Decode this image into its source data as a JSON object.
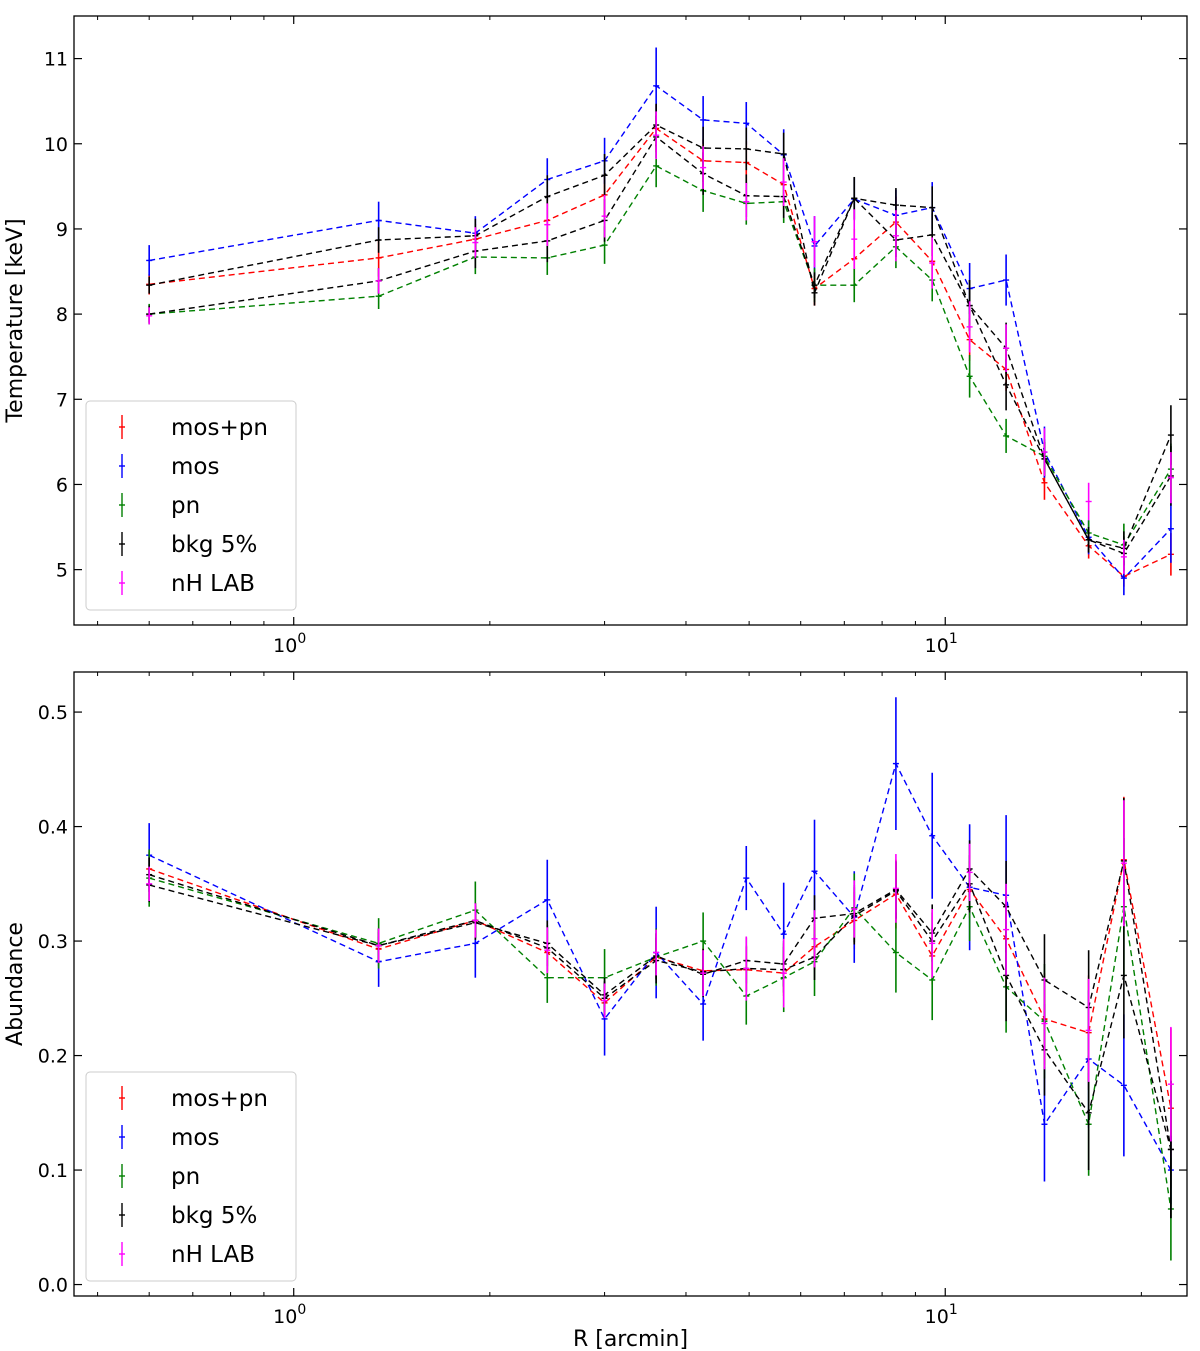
{
  "chart_data": [
    {
      "type": "line",
      "name": "temperature",
      "xscale": "log",
      "xlim": [
        0.46,
        23.5
      ],
      "ylim": [
        4.35,
        11.5
      ],
      "xlabel": "",
      "ylabel": "Temperature [keV]",
      "xticks": [
        {
          "value": 1,
          "label": "10",
          "sup": "0"
        },
        {
          "value": 10,
          "label": "10",
          "sup": "1"
        }
      ],
      "yticks": [
        5,
        6,
        7,
        8,
        9,
        10,
        11
      ],
      "legend": "bottom-left",
      "x": [
        0.6,
        1.35,
        1.9,
        2.45,
        3.0,
        3.6,
        4.25,
        4.95,
        5.65,
        6.3,
        7.25,
        8.4,
        9.55,
        10.9,
        12.4,
        14.2,
        16.6,
        18.8,
        22.2
      ],
      "series": [
        {
          "name": "mos+pn",
          "color": "#ff0000",
          "values": [
            8.35,
            8.66,
            8.88,
            9.1,
            9.4,
            10.18,
            9.8,
            9.78,
            9.52,
            8.3,
            8.65,
            9.08,
            8.62,
            7.7,
            7.35,
            6.02,
            5.28,
            4.92,
            5.18
          ],
          "errors": [
            0.12,
            0.22,
            0.18,
            0.3,
            0.25,
            0.28,
            0.25,
            0.25,
            0.3,
            0.2,
            0.35,
            0.3,
            0.3,
            0.25,
            0.25,
            0.2,
            0.15,
            0.12,
            0.25
          ]
        },
        {
          "name": "mos",
          "color": "#0000ff",
          "values": [
            8.63,
            9.1,
            8.95,
            9.58,
            9.8,
            10.68,
            10.28,
            10.24,
            9.87,
            8.8,
            9.35,
            9.16,
            9.25,
            8.3,
            8.4,
            6.38,
            5.38,
            4.9,
            5.48
          ],
          "errors": [
            0.18,
            0.22,
            0.2,
            0.25,
            0.27,
            0.45,
            0.28,
            0.25,
            0.3,
            0.35,
            0.25,
            0.3,
            0.3,
            0.3,
            0.3,
            0.3,
            0.2,
            0.2,
            0.4
          ]
        },
        {
          "name": "pn",
          "color": "#008000",
          "values": [
            8.0,
            8.21,
            8.67,
            8.66,
            8.81,
            9.74,
            9.45,
            9.3,
            9.32,
            8.34,
            8.34,
            8.79,
            8.4,
            7.27,
            6.57,
            6.33,
            5.43,
            5.29,
            6.18
          ],
          "errors": [
            0.12,
            0.15,
            0.2,
            0.2,
            0.22,
            0.25,
            0.25,
            0.25,
            0.25,
            0.2,
            0.2,
            0.25,
            0.25,
            0.25,
            0.2,
            0.2,
            0.15,
            0.25,
            0.3
          ]
        },
        {
          "name": "bkg 5%",
          "color": "#000000",
          "values": [
            8.34,
            8.87,
            8.92,
            9.38,
            9.63,
            10.22,
            9.95,
            9.94,
            9.88,
            8.25,
            9.36,
            9.28,
            9.25,
            8.1,
            7.6,
            6.3,
            5.35,
            5.25,
            6.58
          ],
          "errors": [
            0.1,
            0.15,
            0.2,
            0.25,
            0.25,
            0.25,
            0.25,
            0.25,
            0.25,
            0.15,
            0.25,
            0.2,
            0.25,
            0.3,
            0.3,
            0.2,
            0.15,
            0.2,
            0.35
          ]
        },
        {
          "name": "black-lower",
          "color": "#000000",
          "legend": false,
          "values": [
            8.0,
            8.39,
            8.74,
            8.86,
            9.1,
            10.08,
            9.65,
            9.39,
            9.38,
            8.34,
            9.36,
            8.87,
            8.93,
            8.1,
            7.17,
            6.3,
            5.35,
            5.19,
            6.1
          ],
          "errors": [
            0.1,
            0.15,
            0.2,
            0.25,
            0.25,
            0.25,
            0.25,
            0.25,
            0.25,
            0.15,
            0.25,
            0.2,
            0.25,
            0.3,
            0.3,
            0.2,
            0.15,
            0.2,
            0.35
          ]
        },
        {
          "name": "nH LAB",
          "color": "#ff00ff",
          "line": false,
          "values": [
            7.98,
            8.39,
            8.84,
            9.05,
            9.15,
            10.1,
            9.72,
            9.32,
            9.55,
            8.85,
            8.88,
            8.92,
            8.6,
            7.85,
            7.6,
            6.38,
            5.8,
            5.15,
            6.08
          ],
          "errors": [
            0.1,
            0.15,
            0.18,
            0.25,
            0.25,
            0.28,
            0.25,
            0.22,
            0.28,
            0.3,
            0.35,
            0.3,
            0.3,
            0.3,
            0.28,
            0.28,
            0.22,
            0.2,
            0.3
          ]
        }
      ]
    },
    {
      "type": "line",
      "name": "abundance",
      "xscale": "log",
      "xlim": [
        0.46,
        23.5
      ],
      "ylim": [
        -0.01,
        0.535
      ],
      "xlabel": "R [arcmin]",
      "ylabel": "Abundance",
      "xticks": [
        {
          "value": 1,
          "label": "10",
          "sup": "0"
        },
        {
          "value": 10,
          "label": "10",
          "sup": "1"
        }
      ],
      "yticks": [
        0.0,
        0.1,
        0.2,
        0.3,
        0.4,
        0.5
      ],
      "ytick_labels": [
        "0.0",
        "0.1",
        "0.2",
        "0.3",
        "0.4",
        "0.5"
      ],
      "legend": "bottom-left",
      "x": [
        0.6,
        1.35,
        1.9,
        2.45,
        3.0,
        3.6,
        4.25,
        4.95,
        5.65,
        6.3,
        7.25,
        8.4,
        9.55,
        10.9,
        12.4,
        14.2,
        16.6,
        18.8,
        22.2
      ],
      "series": [
        {
          "name": "mos+pn",
          "color": "#ff0000",
          "values": [
            0.363,
            0.293,
            0.318,
            0.29,
            0.246,
            0.286,
            0.274,
            0.275,
            0.272,
            0.295,
            0.318,
            0.341,
            0.287,
            0.345,
            0.302,
            0.232,
            0.22,
            0.371,
            0.154
          ],
          "errors": [
            0.015,
            0.015,
            0.015,
            0.02,
            0.015,
            0.02,
            0.02,
            0.02,
            0.02,
            0.02,
            0.025,
            0.03,
            0.025,
            0.025,
            0.04,
            0.04,
            0.05,
            0.055,
            0.07
          ]
        },
        {
          "name": "mos",
          "color": "#0000ff",
          "values": [
            0.375,
            0.282,
            0.298,
            0.336,
            0.232,
            0.29,
            0.245,
            0.355,
            0.306,
            0.361,
            0.321,
            0.455,
            0.392,
            0.347,
            0.34,
            0.14,
            0.197,
            0.174,
            0.1
          ],
          "errors": [
            0.028,
            0.022,
            0.03,
            0.035,
            0.032,
            0.04,
            0.032,
            0.028,
            0.045,
            0.045,
            0.04,
            0.058,
            0.055,
            0.055,
            0.07,
            0.05,
            0.06,
            0.062,
            0.03
          ]
        },
        {
          "name": "pn",
          "color": "#008000",
          "values": [
            0.355,
            0.298,
            0.327,
            0.268,
            0.268,
            0.286,
            0.3,
            0.252,
            0.268,
            0.282,
            0.329,
            0.29,
            0.266,
            0.33,
            0.26,
            0.23,
            0.14,
            0.33,
            0.066
          ],
          "errors": [
            0.025,
            0.022,
            0.025,
            0.022,
            0.025,
            0.025,
            0.025,
            0.025,
            0.03,
            0.03,
            0.03,
            0.035,
            0.035,
            0.03,
            0.04,
            0.05,
            0.045,
            0.06,
            0.045
          ]
        },
        {
          "name": "bkg 5%",
          "color": "#000000",
          "values": [
            0.358,
            0.296,
            0.316,
            0.298,
            0.253,
            0.287,
            0.271,
            0.283,
            0.28,
            0.32,
            0.324,
            0.345,
            0.307,
            0.363,
            0.33,
            0.266,
            0.242,
            0.37,
            0.118
          ],
          "errors": [
            0.015,
            0.015,
            0.015,
            0.02,
            0.015,
            0.02,
            0.02,
            0.02,
            0.02,
            0.02,
            0.025,
            0.025,
            0.025,
            0.025,
            0.04,
            0.04,
            0.05,
            0.055,
            0.06
          ]
        },
        {
          "name": "black-lower",
          "color": "#000000",
          "legend": false,
          "values": [
            0.349,
            0.296,
            0.318,
            0.294,
            0.25,
            0.283,
            0.273,
            0.276,
            0.275,
            0.286,
            0.322,
            0.344,
            0.3,
            0.35,
            0.27,
            0.205,
            0.15,
            0.27,
            0.118
          ],
          "errors": [
            0.015,
            0.015,
            0.015,
            0.02,
            0.015,
            0.02,
            0.02,
            0.02,
            0.02,
            0.02,
            0.025,
            0.025,
            0.025,
            0.025,
            0.04,
            0.04,
            0.05,
            0.055,
            0.06
          ]
        },
        {
          "name": "nH LAB",
          "color": "#ff00ff",
          "line": false,
          "values": [
            0.35,
            0.296,
            0.318,
            0.292,
            0.248,
            0.29,
            0.272,
            0.276,
            0.272,
            0.302,
            0.328,
            0.346,
            0.298,
            0.36,
            0.31,
            0.228,
            0.222,
            0.368,
            0.175
          ],
          "errors": [
            0.015,
            0.015,
            0.015,
            0.02,
            0.015,
            0.02,
            0.02,
            0.028,
            0.03,
            0.025,
            0.025,
            0.03,
            0.03,
            0.025,
            0.04,
            0.04,
            0.045,
            0.055,
            0.05
          ]
        }
      ]
    }
  ]
}
